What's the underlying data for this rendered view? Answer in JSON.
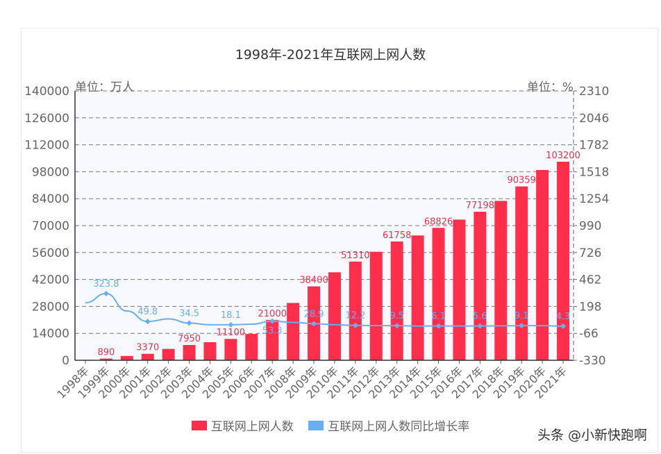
{
  "chart_data": {
    "type": "bar+line",
    "title": "1998年-2021年互联网上网人数",
    "left_unit": "单位：万人",
    "right_unit": "单位：%",
    "categories": [
      "1998年",
      "1999年",
      "2000年",
      "2001年",
      "2002年",
      "2003年",
      "2004年",
      "2005年",
      "2006年",
      "2007年",
      "2008年",
      "2009年",
      "2010年",
      "2011年",
      "2012年",
      "2013年",
      "2014年",
      "2015年",
      "2016年",
      "2017年",
      "2018年",
      "2019年",
      "2020年",
      "2021年"
    ],
    "y_left": {
      "range": [
        0,
        140000
      ],
      "ticks": [
        "0",
        "14000",
        "28000",
        "42000",
        "56000",
        "70000",
        "84000",
        "98000",
        "112000",
        "126000",
        "140000"
      ]
    },
    "y_right": {
      "range": [
        -330,
        2310
      ],
      "ticks": [
        "-330",
        "-66",
        "198",
        "462",
        "726",
        "990",
        "1254",
        "1518",
        "1782",
        "2046",
        "2310"
      ]
    },
    "grid": true,
    "legend_position": "bottom",
    "series": [
      {
        "name": "互联网上网人数",
        "type": "bar",
        "axis": "left",
        "color": "#ff2e4a",
        "values": [
          210,
          890,
          2250,
          3370,
          5910,
          7950,
          9400,
          11100,
          13700,
          21000,
          29800,
          38400,
          45730,
          51310,
          56400,
          61758,
          64875,
          68826,
          73125,
          77198,
          82851,
          90359,
          98899,
          103200
        ],
        "labels": [
          "",
          "890",
          "",
          "3370",
          "",
          "7950",
          "",
          "11100",
          "",
          "21000",
          "",
          "38400",
          "",
          "51310",
          "",
          "61758",
          "",
          "68826",
          "",
          "77198",
          "",
          "90359",
          "",
          "103200"
        ]
      },
      {
        "name": "互联网上网人数同比增长率",
        "type": "line",
        "axis": "right",
        "color": "#6aaef0",
        "values": [
          233,
          323.8,
          152.8,
          49.8,
          75.4,
          34.5,
          18.2,
          18.1,
          23.4,
          53.3,
          41.9,
          28.9,
          19.1,
          12.2,
          9.9,
          9.5,
          5.0,
          6.1,
          6.2,
          5.6,
          7.3,
          9.1,
          9.5,
          4.3
        ],
        "labels": [
          "",
          "323.8",
          "",
          "49.8",
          "",
          "34.5",
          "",
          "18.1",
          "",
          "53.3",
          "",
          "28.9",
          "",
          "12.2",
          "",
          "9.5",
          "",
          "6.1",
          "",
          "5.6",
          "",
          "9.1",
          "",
          "4.3"
        ]
      }
    ]
  },
  "watermark": "头条 @小新快跑啊"
}
